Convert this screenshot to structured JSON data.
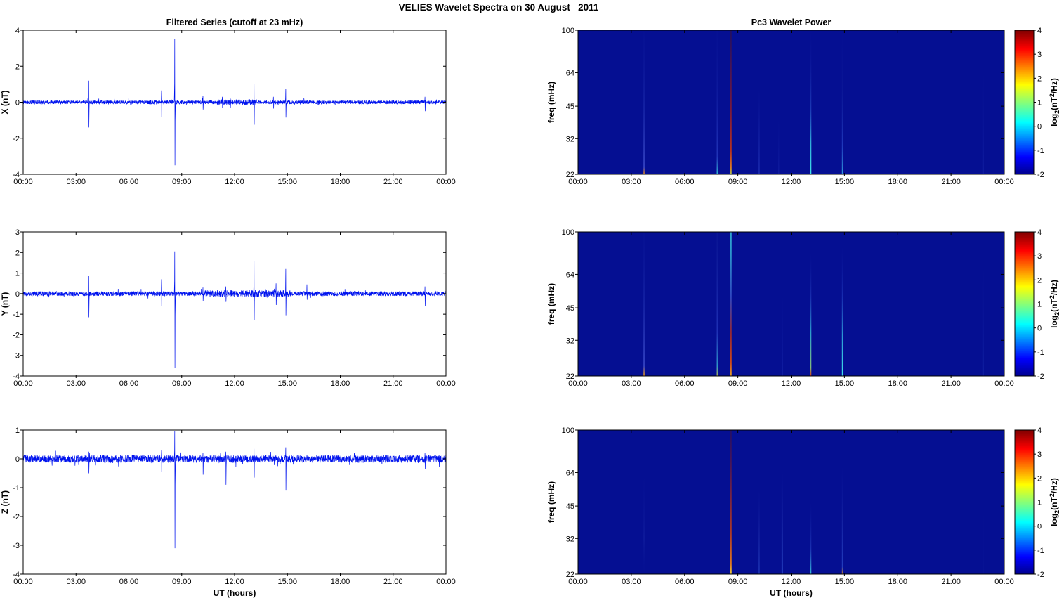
{
  "figure": {
    "title": "VELIES Wavelet Spectra on 30 August   2011",
    "background": "#ffffff"
  },
  "colorbar": {
    "range": [
      -2,
      4
    ],
    "ticks": [
      4,
      3,
      2,
      1,
      0,
      -1,
      -2
    ],
    "label_parts": {
      "pre": "log",
      "sub": "2",
      "mid": "(nT",
      "sup": "2",
      "post": "/Hz)"
    },
    "label_plain": "log2(nT2/Hz)",
    "gradient": [
      [
        0,
        "#00008f"
      ],
      [
        0.12,
        "#0000ff"
      ],
      [
        0.36,
        "#00ffff"
      ],
      [
        0.62,
        "#ffff00"
      ],
      [
        0.87,
        "#ff0000"
      ],
      [
        1,
        "#7f0000"
      ]
    ]
  },
  "chart_data": [
    {
      "id": "x-filtered-series",
      "type": "line",
      "title": "Filtered Series (cutoff at 23 mHz)",
      "ylabel": "X (nT)",
      "xlabel": "",
      "xticks": {
        "hours": [
          0,
          3,
          6,
          9,
          12,
          15,
          18,
          21,
          24
        ],
        "labels": [
          "00:00",
          "03:00",
          "06:00",
          "09:00",
          "12:00",
          "15:00",
          "18:00",
          "21:00",
          "00:00"
        ]
      },
      "x_range_hours": [
        0,
        24
      ],
      "ylim": [
        -4,
        4
      ],
      "yticks": [
        4,
        2,
        0,
        -2,
        -4
      ],
      "line_color": "#0013ee",
      "noise_amp": 0.1,
      "bursts": [
        {
          "t0": 11.0,
          "t1": 13.3,
          "gain": 1.5
        }
      ],
      "spikes": [
        {
          "t": 3.72,
          "up": 1.2,
          "down": -1.4
        },
        {
          "t": 7.85,
          "up": 0.65,
          "down": -0.8
        },
        {
          "t": 8.6,
          "up": 3.5,
          "down": -3.5
        },
        {
          "t": 10.2,
          "up": 0.35,
          "down": -0.4
        },
        {
          "t": 11.3,
          "up": 0.3,
          "down": -0.3
        },
        {
          "t": 11.75,
          "up": 0.25,
          "down": -0.3
        },
        {
          "t": 13.1,
          "up": 1.0,
          "down": -1.25
        },
        {
          "t": 14.2,
          "up": 0.3,
          "down": -0.35
        },
        {
          "t": 14.9,
          "up": 0.75,
          "down": -0.85
        },
        {
          "t": 22.8,
          "up": 0.3,
          "down": -0.5
        }
      ]
    },
    {
      "id": "y-filtered-series",
      "type": "line",
      "title": "",
      "ylabel": "Y (nT)",
      "xlabel": "",
      "xticks": {
        "hours": [
          0,
          3,
          6,
          9,
          12,
          15,
          18,
          21,
          24
        ],
        "labels": [
          "00:00",
          "03:00",
          "06:00",
          "09:00",
          "12:00",
          "15:00",
          "18:00",
          "21:00",
          "00:00"
        ]
      },
      "x_range_hours": [
        0,
        24
      ],
      "ylim": [
        -4,
        3
      ],
      "yticks": [
        3,
        2,
        1,
        0,
        -1,
        -2,
        -3,
        -4
      ],
      "line_color": "#0013ee",
      "noise_amp": 0.11,
      "bursts": [
        {
          "t0": 10.3,
          "t1": 15.2,
          "gain": 1.5
        }
      ],
      "spikes": [
        {
          "t": 3.72,
          "up": 0.85,
          "down": -1.15
        },
        {
          "t": 7.85,
          "up": 0.7,
          "down": -0.6
        },
        {
          "t": 8.6,
          "up": 2.05,
          "down": -3.6
        },
        {
          "t": 10.2,
          "up": 0.3,
          "down": -0.35
        },
        {
          "t": 11.5,
          "up": 0.35,
          "down": -0.4
        },
        {
          "t": 13.1,
          "up": 1.6,
          "down": -1.3
        },
        {
          "t": 14.35,
          "up": 0.5,
          "down": -0.55
        },
        {
          "t": 14.9,
          "up": 1.2,
          "down": -1.05
        },
        {
          "t": 16.1,
          "up": 0.45,
          "down": -0.3
        },
        {
          "t": 22.8,
          "up": 0.35,
          "down": -0.6
        }
      ]
    },
    {
      "id": "z-filtered-series",
      "type": "line",
      "title": "",
      "ylabel": "Z (nT)",
      "xlabel": "UT (hours)",
      "xticks": {
        "hours": [
          0,
          3,
          6,
          9,
          12,
          15,
          18,
          21,
          24
        ],
        "labels": [
          "00:00",
          "03:00",
          "06:00",
          "09:00",
          "12:00",
          "15:00",
          "18:00",
          "21:00",
          "00:00"
        ]
      },
      "x_range_hours": [
        0,
        24
      ],
      "ylim": [
        -4,
        1
      ],
      "yticks": [
        1,
        0,
        -1,
        -2,
        -3,
        -4
      ],
      "line_color": "#0013ee",
      "noise_amp": 0.13,
      "bursts": [],
      "spikes": [
        {
          "t": 3.72,
          "up": 0.25,
          "down": -0.5
        },
        {
          "t": 7.85,
          "up": 0.3,
          "down": -0.45
        },
        {
          "t": 8.6,
          "up": 0.95,
          "down": -3.1
        },
        {
          "t": 10.2,
          "up": 0.2,
          "down": -0.55
        },
        {
          "t": 11.5,
          "up": 0.25,
          "down": -0.9
        },
        {
          "t": 13.1,
          "up": 0.35,
          "down": -0.65
        },
        {
          "t": 14.9,
          "up": 0.4,
          "down": -1.1
        },
        {
          "t": 22.8,
          "up": 0.2,
          "down": -0.35
        }
      ]
    },
    {
      "id": "x-wavelet-power",
      "type": "heatmap",
      "title": "Pc3 Wavelet Power",
      "ylabel": "freq (mHz)",
      "xlabel": "",
      "xticks": {
        "hours": [
          0,
          3,
          6,
          9,
          12,
          15,
          18,
          21,
          24
        ],
        "labels": [
          "00:00",
          "03:00",
          "06:00",
          "09:00",
          "12:00",
          "15:00",
          "18:00",
          "21:00",
          "00:00"
        ]
      },
      "x_range_hours": [
        0,
        24
      ],
      "freq_ticks": [
        100,
        64,
        45,
        32,
        22
      ],
      "freq_range": [
        22,
        100
      ],
      "bg": "#050f92",
      "events": [
        {
          "t": 3.72,
          "w": 2,
          "stops": [
            [
              0,
              "#c9731f",
              1
            ],
            [
              0.05,
              "#3a49c8",
              0.85
            ],
            [
              0.45,
              "#2233b4",
              0.5
            ],
            [
              0.95,
              "#101ea0",
              0.15
            ],
            [
              1,
              "#101ea0",
              0
            ]
          ]
        },
        {
          "t": 7.85,
          "w": 2,
          "stops": [
            [
              0,
              "#35c8d8",
              0.9
            ],
            [
              0.12,
              "#2a3fc4",
              0.75
            ],
            [
              0.55,
              "#1a2aae",
              0.4
            ],
            [
              1,
              "#101ea0",
              0.1
            ]
          ]
        },
        {
          "t": 8.6,
          "w": 2.5,
          "stops": [
            [
              0,
              "#a6c24d",
              1
            ],
            [
              0.05,
              "#e0791f",
              1
            ],
            [
              0.16,
              "#c23418",
              0.95
            ],
            [
              0.45,
              "#8e1b2c",
              0.85
            ],
            [
              0.75,
              "#641637",
              0.7
            ],
            [
              1,
              "#3c1038",
              0.55
            ]
          ]
        },
        {
          "t": 10.2,
          "w": 1.5,
          "stops": [
            [
              0,
              "#2a3fc4",
              0.65
            ],
            [
              0.35,
              "#1a2aae",
              0.35
            ],
            [
              0.6,
              "#101ea0",
              0
            ]
          ]
        },
        {
          "t": 11.3,
          "w": 1.2,
          "stops": [
            [
              0,
              "#2333b8",
              0.4
            ],
            [
              0.4,
              "#101ea0",
              0
            ]
          ]
        },
        {
          "t": 13.1,
          "w": 2,
          "stops": [
            [
              0,
              "#3fe2e8",
              1
            ],
            [
              0.22,
              "#35bfe0",
              0.9
            ],
            [
              0.45,
              "#2a55cc",
              0.6
            ],
            [
              0.8,
              "#1a2aae",
              0.2
            ],
            [
              1,
              "#101ea0",
              0
            ]
          ]
        },
        {
          "t": 14.9,
          "w": 2,
          "stops": [
            [
              0,
              "#32a9e0",
              0.9
            ],
            [
              0.2,
              "#2a49cc",
              0.7
            ],
            [
              0.6,
              "#16269e",
              0.3
            ],
            [
              1,
              "#101ea0",
              0
            ]
          ]
        },
        {
          "t": 22.8,
          "w": 1.5,
          "stops": [
            [
              0,
              "#2a3fc4",
              0.6
            ],
            [
              0.45,
              "#1a2aae",
              0.25
            ],
            [
              0.75,
              "#101ea0",
              0
            ]
          ]
        }
      ]
    },
    {
      "id": "y-wavelet-power",
      "type": "heatmap",
      "title": "",
      "ylabel": "freq (mHz)",
      "xlabel": "",
      "xticks": {
        "hours": [
          0,
          3,
          6,
          9,
          12,
          15,
          18,
          21,
          24
        ],
        "labels": [
          "00:00",
          "03:00",
          "06:00",
          "09:00",
          "12:00",
          "15:00",
          "18:00",
          "21:00",
          "00:00"
        ]
      },
      "x_range_hours": [
        0,
        24
      ],
      "freq_ticks": [
        100,
        64,
        45,
        32,
        22
      ],
      "freq_range": [
        22,
        100
      ],
      "bg": "#050f92",
      "events": [
        {
          "t": 3.72,
          "w": 2,
          "stops": [
            [
              0,
              "#d3831f",
              1
            ],
            [
              0.07,
              "#3a49c8",
              0.85
            ],
            [
              0.5,
              "#2233b4",
              0.5
            ],
            [
              1,
              "#101ea0",
              0.1
            ]
          ]
        },
        {
          "t": 7.85,
          "w": 2,
          "stops": [
            [
              0,
              "#b3b44f",
              0.95
            ],
            [
              0.07,
              "#35aed2",
              0.85
            ],
            [
              0.3,
              "#2a3fc4",
              0.7
            ],
            [
              1,
              "#16269e",
              0.25
            ]
          ]
        },
        {
          "t": 8.6,
          "w": 2.5,
          "stops": [
            [
              0,
              "#e6a32b",
              1
            ],
            [
              0.09,
              "#d24a18",
              1
            ],
            [
              0.3,
              "#a52a28",
              0.9
            ],
            [
              0.55,
              "#3a55cc",
              0.8
            ],
            [
              0.85,
              "#35b9da",
              0.8
            ],
            [
              1,
              "#3fd8e6",
              0.75
            ]
          ]
        },
        {
          "t": 11.5,
          "w": 1.5,
          "stops": [
            [
              0,
              "#2a3fc4",
              0.5
            ],
            [
              0.35,
              "#1a2aae",
              0.2
            ],
            [
              0.6,
              "#101ea0",
              0
            ]
          ]
        },
        {
          "t": 13.1,
          "w": 2,
          "stops": [
            [
              0,
              "#cf3318",
              1
            ],
            [
              0.06,
              "#8fcf78",
              0.9
            ],
            [
              0.3,
              "#35c2da",
              0.8
            ],
            [
              0.55,
              "#2a49c8",
              0.5
            ],
            [
              0.85,
              "#101ea0",
              0
            ]
          ]
        },
        {
          "t": 14.9,
          "w": 2,
          "stops": [
            [
              0,
              "#3fe2e8",
              1
            ],
            [
              0.28,
              "#32b0e0",
              0.85
            ],
            [
              0.55,
              "#2a49cc",
              0.5
            ],
            [
              0.9,
              "#101ea0",
              0
            ]
          ]
        },
        {
          "t": 22.8,
          "w": 1.5,
          "stops": [
            [
              0,
              "#2a49c8",
              0.6
            ],
            [
              0.5,
              "#1a2aae",
              0.25
            ],
            [
              0.8,
              "#101ea0",
              0
            ]
          ]
        }
      ]
    },
    {
      "id": "z-wavelet-power",
      "type": "heatmap",
      "title": "",
      "ylabel": "freq (mHz)",
      "xlabel": "UT (hours)",
      "xticks": {
        "hours": [
          0,
          3,
          6,
          9,
          12,
          15,
          18,
          21,
          24
        ],
        "labels": [
          "00:00",
          "03:00",
          "06:00",
          "09:00",
          "12:00",
          "15:00",
          "18:00",
          "21:00",
          "00:00"
        ]
      },
      "x_range_hours": [
        0,
        24
      ],
      "freq_ticks": [
        100,
        64,
        45,
        32,
        22
      ],
      "freq_range": [
        22,
        100
      ],
      "bg": "#050f92",
      "events": [
        {
          "t": 3.72,
          "w": 1.5,
          "stops": [
            [
              0,
              "#101ea0",
              0
            ],
            [
              0.25,
              "#2233b0",
              0.35
            ],
            [
              0.7,
              "#101ea0",
              0
            ]
          ]
        },
        {
          "t": 8.6,
          "w": 2.5,
          "stops": [
            [
              0,
              "#ecd23a",
              1
            ],
            [
              0.07,
              "#e0791f",
              1
            ],
            [
              0.28,
              "#c23f18",
              0.9
            ],
            [
              0.55,
              "#93282e",
              0.8
            ],
            [
              0.8,
              "#64163a",
              0.65
            ],
            [
              1,
              "#46103a",
              0.5
            ]
          ]
        },
        {
          "t": 10.2,
          "w": 1.5,
          "stops": [
            [
              0,
              "#2a49c8",
              0.7
            ],
            [
              0.3,
              "#2233b0",
              0.4
            ],
            [
              0.6,
              "#101ea0",
              0
            ]
          ]
        },
        {
          "t": 11.5,
          "w": 2,
          "stops": [
            [
              0,
              "#2a49c8",
              0.8
            ],
            [
              0.35,
              "#2233b0",
              0.5
            ],
            [
              0.72,
              "#101ea0",
              0
            ]
          ]
        },
        {
          "t": 13.1,
          "w": 2,
          "stops": [
            [
              0,
              "#3ad2e0",
              0.9
            ],
            [
              0.18,
              "#2a49c8",
              0.55
            ],
            [
              0.5,
              "#101ea0",
              0
            ]
          ]
        },
        {
          "t": 14.9,
          "w": 2,
          "stops": [
            [
              0,
              "#d3831f",
              0.9
            ],
            [
              0.05,
              "#2a49c8",
              0.8
            ],
            [
              0.4,
              "#2233b0",
              0.45
            ],
            [
              0.75,
              "#101ea0",
              0
            ]
          ]
        },
        {
          "t": 22.8,
          "w": 1.2,
          "stops": [
            [
              0,
              "#2233b0",
              0.3
            ],
            [
              0.5,
              "#101ea0",
              0
            ]
          ]
        }
      ]
    }
  ]
}
